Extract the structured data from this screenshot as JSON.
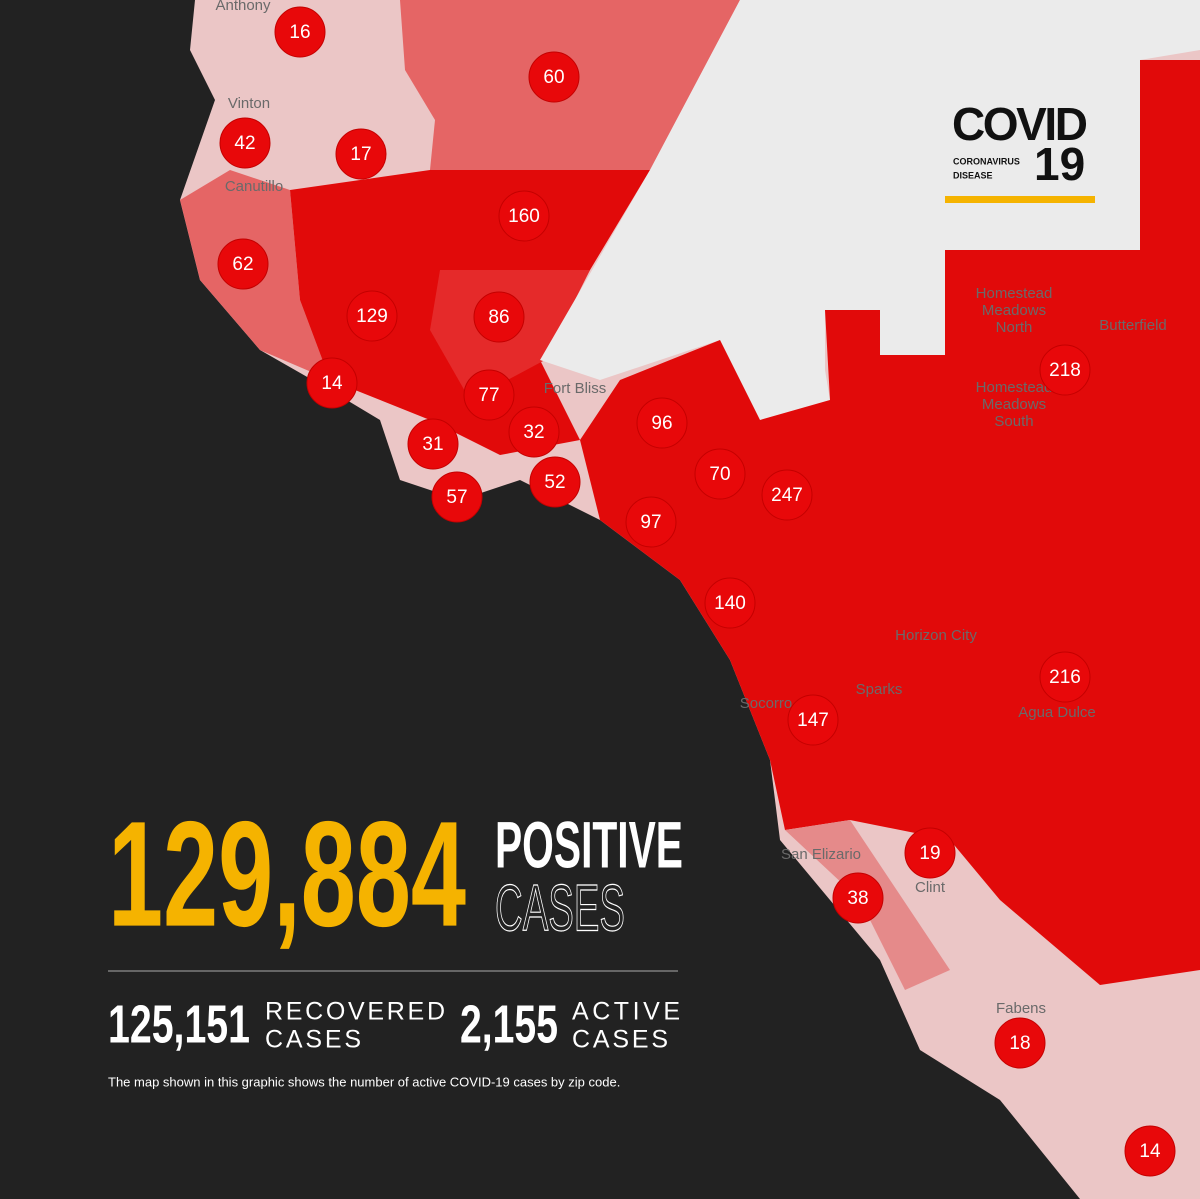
{
  "logo": {
    "title": "COVID",
    "number": "19",
    "subtitle_1": "CORONAVIRUS",
    "subtitle_2": "DISEASE"
  },
  "places": [
    [
      "Anthony"
    ],
    [
      "Vinton"
    ],
    [
      "Canutillo"
    ],
    [
      "Fort Bliss"
    ],
    [
      "Homestead",
      "Meadows",
      "North"
    ],
    [
      "Butterfield"
    ],
    [
      "Homestead",
      "Meadows",
      "South"
    ],
    [
      "Horizon City"
    ],
    [
      "Sparks"
    ],
    [
      "Socorro"
    ],
    [
      "Agua Dulce"
    ],
    [
      "San Elizario"
    ],
    [
      "Clint"
    ],
    [
      "Fabens"
    ]
  ],
  "zip_counts": [
    "16",
    "60",
    "42",
    "17",
    "160",
    "62",
    "129",
    "86",
    "14",
    "77",
    "32",
    "31",
    "57",
    "52",
    "96",
    "70",
    "247",
    "97",
    "140",
    "218",
    "216",
    "147",
    "19",
    "38",
    "18",
    "14"
  ],
  "totals": {
    "positive": "129,884",
    "positive_label_1": "POSITIVE",
    "positive_label_2": "CASES",
    "recovered": "125,151",
    "recovered_label_1": "RECOVERED",
    "recovered_label_2": "CASES",
    "active": "2,155",
    "active_label_1": "ACTIVE",
    "active_label_2": "CASES"
  },
  "note": "The map shown in this graphic shows the number of active COVID-19 cases by zip code."
}
